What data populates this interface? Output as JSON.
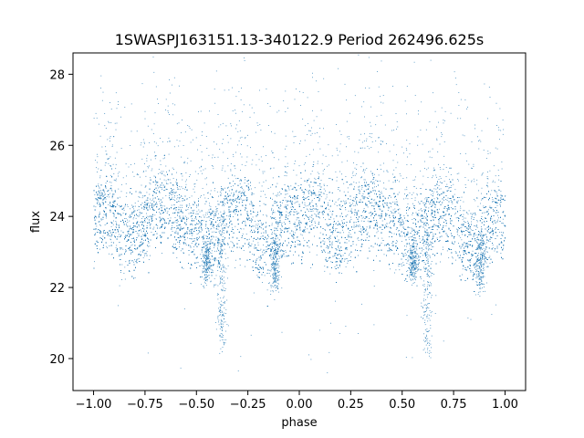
{
  "chart_data": {
    "type": "scatter",
    "title": "1SWASPJ163151.13-340122.9 Period 262496.625s",
    "xlabel": "phase",
    "ylabel": "flux",
    "xlim": [
      -1.1,
      1.1
    ],
    "ylim": [
      19.1,
      28.6
    ],
    "xticks": [
      -1.0,
      -0.75,
      -0.5,
      -0.25,
      0.0,
      0.25,
      0.5,
      0.75,
      1.0
    ],
    "xtick_labels": [
      "−1.00",
      "−0.75",
      "−0.50",
      "−0.25",
      "0.00",
      "0.25",
      "0.50",
      "0.75",
      "1.00"
    ],
    "yticks": [
      20,
      22,
      24,
      26,
      28
    ],
    "ytick_labels": [
      "20",
      "22",
      "24",
      "26",
      "28"
    ],
    "grid": false,
    "point_color": "#1f77b4",
    "series": [
      {
        "x_range": [
          -1.0,
          1.0
        ],
        "profile_phase": [
          0.0,
          0.05,
          0.1,
          0.15,
          0.2,
          0.25,
          0.3,
          0.35,
          0.4,
          0.45,
          0.5,
          0.55,
          0.6,
          0.65,
          0.7,
          0.75,
          0.8,
          0.85,
          0.9,
          0.95,
          1.0
        ],
        "profile_flux": [
          23.9,
          24.2,
          24.0,
          23.4,
          23.5,
          23.7,
          24.2,
          24.3,
          24.0,
          23.8,
          23.4,
          23.2,
          23.7,
          24.0,
          24.1,
          23.9,
          23.2,
          23.1,
          23.6,
          24.0,
          23.9
        ],
        "scatter_sd": 0.6,
        "dip_phases": [
          0.62,
          0.55,
          0.88,
          -0.38,
          -0.45,
          -0.12
        ],
        "dip_flux_min": [
          20.3,
          22.3,
          22.0,
          20.3,
          22.3,
          22.0
        ],
        "outlier_range": [
          19.5,
          28.1
        ]
      }
    ]
  }
}
